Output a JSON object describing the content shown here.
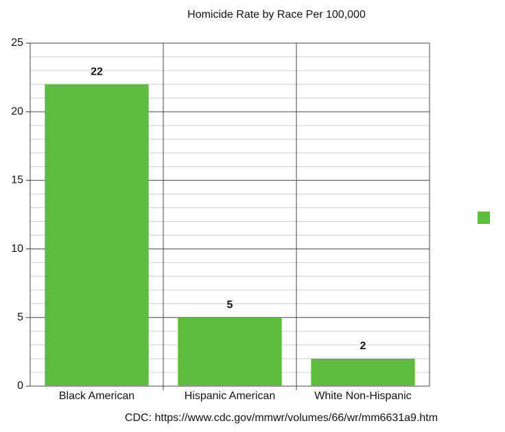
{
  "chart_data": {
    "type": "bar",
    "title": "Homicide Rate by Race Per 100,000",
    "categories": [
      "Black American",
      "Hispanic American",
      "White Non-Hispanic"
    ],
    "values": [
      22,
      5,
      2
    ],
    "color": "#5dbb3f",
    "ylim": [
      0,
      25
    ],
    "yticks": [
      0,
      5,
      10,
      15,
      20,
      25
    ],
    "minor_yticks": [
      1,
      2,
      3,
      4,
      6,
      7,
      8,
      9,
      11,
      12,
      13,
      14,
      16,
      17,
      18,
      19,
      21,
      22,
      23,
      24
    ],
    "grid": true,
    "source": "CDC: https://www.cdc.gov/mmwr/volumes/66/wr/mm6631a9.htm"
  }
}
